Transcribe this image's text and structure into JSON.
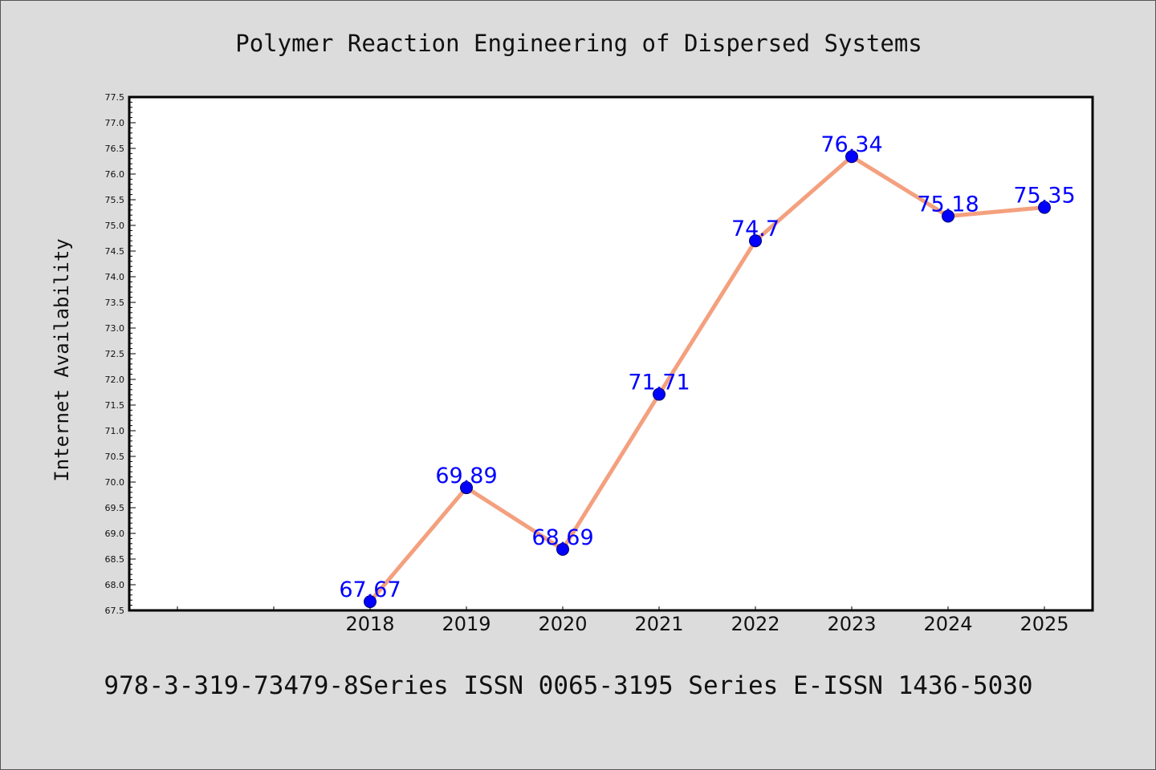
{
  "colors": {
    "background": "#dcdcdc",
    "plot_background": "#ffffff",
    "line": "#f4a07e",
    "marker": "#0000ff",
    "data_label": "#0000ff",
    "axis": "#000000"
  },
  "footer_text": "978-3-319-73479-8Series ISSN 0065-3195 Series E-ISSN 1436-5030",
  "chart_data": {
    "type": "line",
    "title": "Polymer Reaction Engineering of Dispersed Systems",
    "xlabel": "",
    "ylabel": "Internet Availability",
    "categories": [
      "2018",
      "2019",
      "2020",
      "2021",
      "2022",
      "2023",
      "2024",
      "2025"
    ],
    "empty_leading_slots": 2,
    "series": [
      {
        "values": [
          67.67,
          69.89,
          68.69,
          71.71,
          74.7,
          76.34,
          75.18,
          75.35
        ],
        "labels": [
          "67.67",
          "69.89",
          "68.69",
          "71.71",
          "74.7",
          "76.34",
          "75.18",
          "75.35"
        ]
      }
    ],
    "ylim": [
      67.5,
      77.5
    ],
    "ytick_step": 0.5,
    "ytick_labels": [
      "67.5",
      "68.0",
      "68.5",
      "69.0",
      "69.5",
      "70.0",
      "70.5",
      "71.0",
      "71.5",
      "72.0",
      "72.5",
      "73.0",
      "73.5",
      "74.0",
      "74.5",
      "75.0",
      "75.5",
      "76.0",
      "76.5",
      "77.0",
      "77.5"
    ],
    "grid": false,
    "legend": "none"
  }
}
